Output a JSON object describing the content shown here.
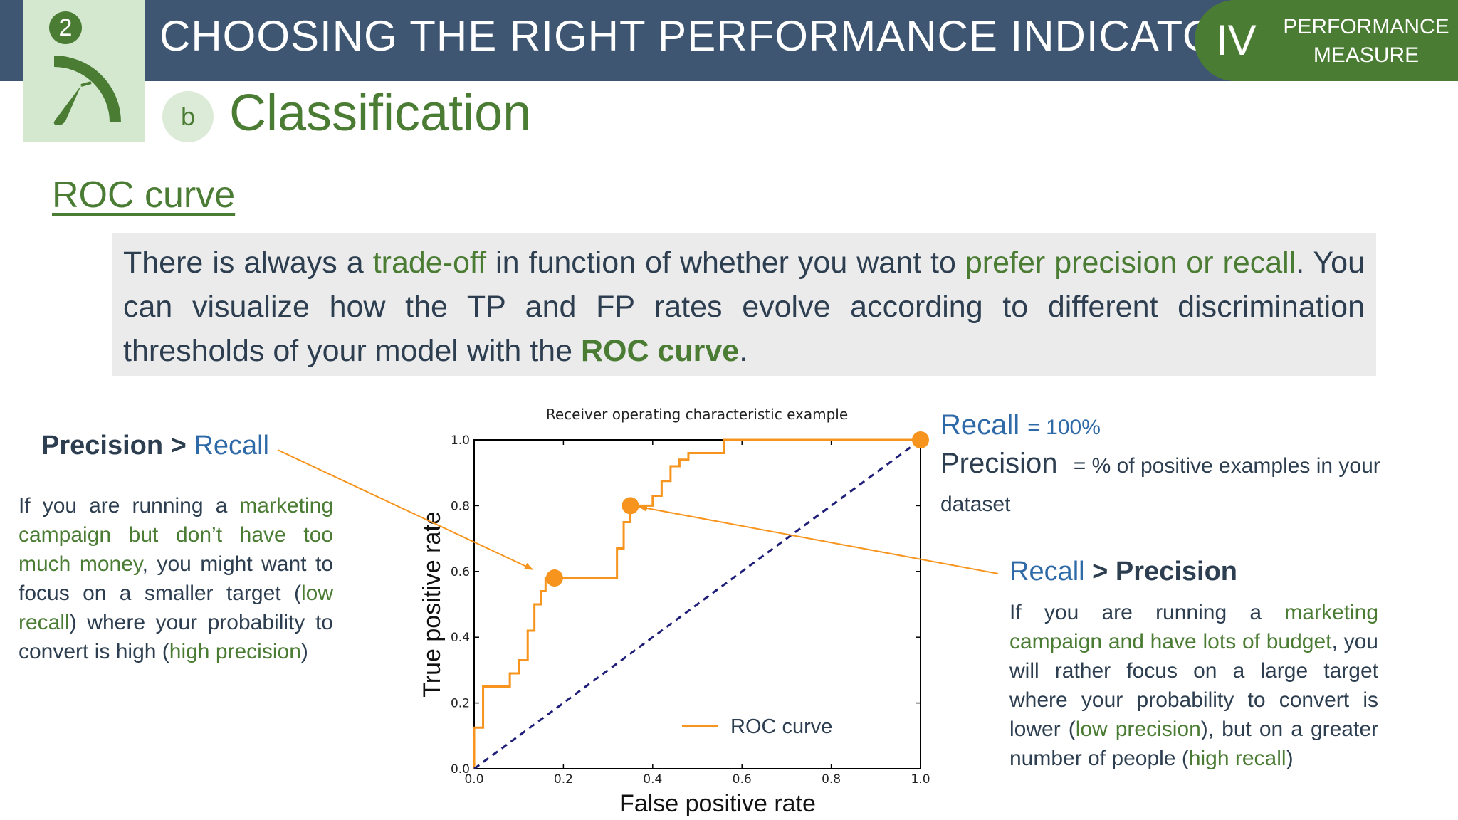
{
  "header": {
    "step_number": "2",
    "title": "CHOOSING THE RIGHT PERFORMANCE INDICATOR",
    "section_number": "IV",
    "section_line1": "PERFORMANCE",
    "section_line2": "MEASURE"
  },
  "subheader": {
    "letter": "b",
    "title": "Classification"
  },
  "heading": "ROC curve",
  "intro": {
    "p1": "There is always a ",
    "h1": "trade-off",
    "p2": " in function of whether you want to ",
    "h2": "prefer precision or recall",
    "p3": ". You can visualize how the TP and FP rates evolve according to different discrimination thresholds of your model with the ",
    "h3": "ROC curve",
    "p4": "."
  },
  "left_panel": {
    "heading_bold": "Precision >",
    "heading_blue": "Recall",
    "t1": "If you are running a ",
    "g1": "marketing campaign but don’t have too much money",
    "t2": ", you might want to focus on a smaller target (",
    "g2": "low recall",
    "t3": ") where your probability to convert is high (",
    "g3": "high precision",
    "t4": ")"
  },
  "right_top": {
    "recall_label": "Recall",
    "recall_value": "= 100%",
    "precision_label": "Precision",
    "precision_value": "= % of positive examples in your dataset"
  },
  "right_panel": {
    "heading_blue": "Recall",
    "heading_bold": "> Precision",
    "t1": "If you are running a ",
    "g1": "marketing campaign and have lots of budget",
    "t2": ", you will rather focus on a large target where your probability to convert is lower (",
    "g2": "low precision",
    "t3": "), but on a greater number of people (",
    "g3": "high recall",
    "t4": ")"
  },
  "colors": {
    "header_bg": "#3f5672",
    "accent_green": "#4b7c34",
    "accent_blue": "#2f6aa8",
    "roc_orange": "#f7941d",
    "diagonal_navy": "#1f1f7a"
  },
  "chart_data": {
    "type": "line",
    "title": "Receiver operating characteristic example",
    "xlabel": "False positive rate",
    "ylabel": "True positive rate",
    "xlim": [
      0,
      1
    ],
    "ylim": [
      0,
      1
    ],
    "xticks": [
      "0.0",
      "0.2",
      "0.4",
      "0.6",
      "0.8",
      "1.0"
    ],
    "yticks": [
      "0.0",
      "0.2",
      "0.4",
      "0.6",
      "0.8",
      "1.0"
    ],
    "legend": "lower-right",
    "series": [
      {
        "name": "ROC curve",
        "x": [
          0,
          0,
          0.02,
          0.02,
          0.08,
          0.08,
          0.1,
          0.1,
          0.12,
          0.12,
          0.135,
          0.135,
          0.15,
          0.15,
          0.16,
          0.16,
          0.18,
          0.18,
          0.2,
          0.2,
          0.32,
          0.32,
          0.335,
          0.335,
          0.35,
          0.35,
          0.4,
          0.4,
          0.42,
          0.42,
          0.44,
          0.44,
          0.46,
          0.46,
          0.48,
          0.48,
          0.5,
          0.5,
          0.56,
          0.56,
          1.0,
          1.0
        ],
        "y": [
          0,
          0.125,
          0.125,
          0.25,
          0.25,
          0.29,
          0.29,
          0.33,
          0.33,
          0.42,
          0.42,
          0.5,
          0.5,
          0.54,
          0.54,
          0.58,
          0.58,
          0.58,
          0.58,
          0.58,
          0.58,
          0.67,
          0.67,
          0.75,
          0.75,
          0.8,
          0.8,
          0.83,
          0.83,
          0.875,
          0.875,
          0.92,
          0.92,
          0.94,
          0.94,
          0.96,
          0.96,
          0.96,
          0.96,
          1.0,
          1.0,
          1.0
        ]
      },
      {
        "name": "",
        "style": "dashed",
        "x": [
          0,
          1
        ],
        "y": [
          0,
          1
        ]
      }
    ],
    "highlight_points": [
      {
        "x": 0.18,
        "y": 0.58
      },
      {
        "x": 0.35,
        "y": 0.8
      },
      {
        "x": 1.0,
        "y": 1.0
      }
    ]
  }
}
